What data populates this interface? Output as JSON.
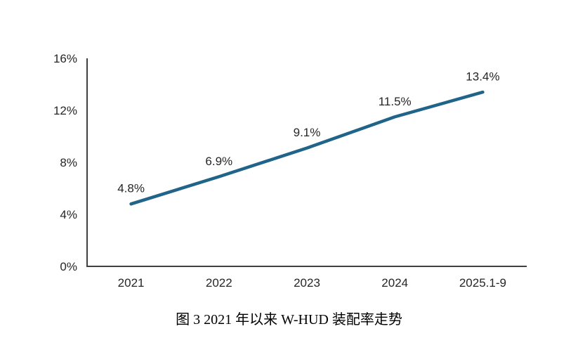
{
  "page": {
    "background_color": "#ffffff"
  },
  "caption": {
    "text": "图 3 2021 年以来 W-HUD 装配率走势"
  },
  "chart_data": {
    "type": "line",
    "title": "图 3 2021 年以来 W-HUD 装配率走势",
    "categories": [
      "2021",
      "2022",
      "2023",
      "2024",
      "2025.1-9"
    ],
    "values": [
      4.8,
      6.9,
      9.1,
      11.5,
      13.4
    ],
    "data_labels": [
      "4.8%",
      "6.9%",
      "9.1%",
      "11.5%",
      "13.4%"
    ],
    "y_ticks": [
      0,
      4,
      8,
      12,
      16
    ],
    "y_tick_labels": [
      "0%",
      "4%",
      "8%",
      "12%",
      "16%"
    ],
    "ylim": [
      0,
      16
    ],
    "xlabel": "",
    "ylabel": "",
    "grid": false,
    "legend_position": "none",
    "line_color": "#20648A",
    "axis_color": "#404040",
    "text_color": "#262626"
  }
}
